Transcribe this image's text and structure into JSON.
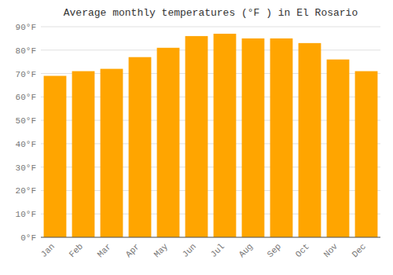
{
  "chart_data": {
    "type": "bar",
    "title": "Average monthly temperatures (°F ) in El Rosario",
    "categories": [
      "Jan",
      "Feb",
      "Mar",
      "Apr",
      "May",
      "Jun",
      "Jul",
      "Aug",
      "Sep",
      "Oct",
      "Nov",
      "Dec"
    ],
    "values": [
      69,
      71,
      72,
      77,
      81,
      86,
      87,
      85,
      85,
      83,
      76,
      71
    ],
    "color": "#FFA500",
    "ylim": [
      0,
      90
    ],
    "yticks": [
      {
        "value": 0,
        "label": "0°F"
      },
      {
        "value": 10,
        "label": "10°F"
      },
      {
        "value": 20,
        "label": "20°F"
      },
      {
        "value": 30,
        "label": "30°F"
      },
      {
        "value": 40,
        "label": "40°F"
      },
      {
        "value": 50,
        "label": "50°F"
      },
      {
        "value": 60,
        "label": "60°F"
      },
      {
        "value": 70,
        "label": "70°F"
      },
      {
        "value": 80,
        "label": "80°F"
      },
      {
        "value": 90,
        "label": "90°F"
      }
    ],
    "grid": true
  }
}
